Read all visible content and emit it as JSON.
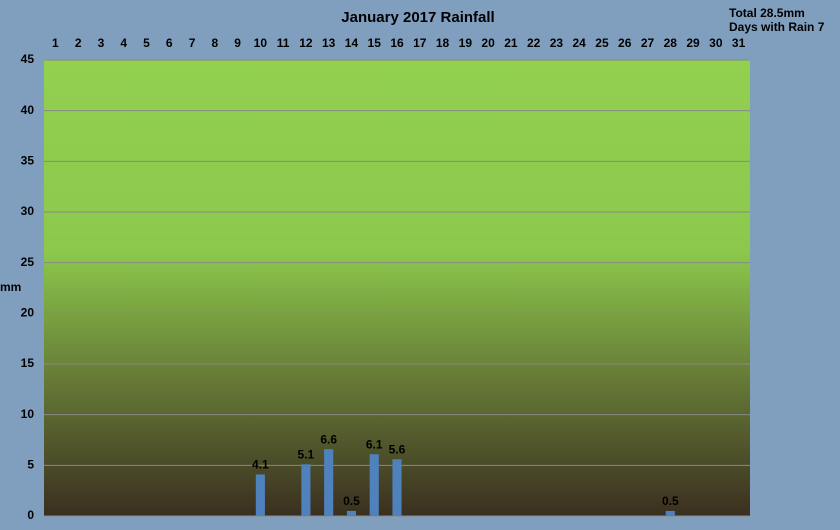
{
  "chart_data": {
    "type": "bar",
    "title": "January 2017 Rainfall",
    "annotations": [
      "Total 28.5mm",
      "Days with Rain 7"
    ],
    "y_label": "mm",
    "categories": [
      "1",
      "2",
      "3",
      "4",
      "5",
      "6",
      "7",
      "8",
      "9",
      "10",
      "11",
      "12",
      "13",
      "14",
      "15",
      "16",
      "17",
      "18",
      "19",
      "20",
      "21",
      "22",
      "23",
      "24",
      "25",
      "26",
      "27",
      "28",
      "29",
      "30",
      "31"
    ],
    "values": [
      null,
      null,
      null,
      null,
      null,
      null,
      null,
      null,
      null,
      4.1,
      null,
      5.1,
      6.6,
      0.5,
      6.1,
      5.6,
      null,
      null,
      null,
      null,
      null,
      null,
      null,
      null,
      null,
      null,
      null,
      0.5,
      null,
      null,
      null
    ],
    "color": "#4f81bd",
    "ylim": [
      0,
      45
    ],
    "yticks": [
      0,
      5,
      10,
      15,
      20,
      25,
      30,
      35,
      40,
      45
    ],
    "grid": true
  }
}
